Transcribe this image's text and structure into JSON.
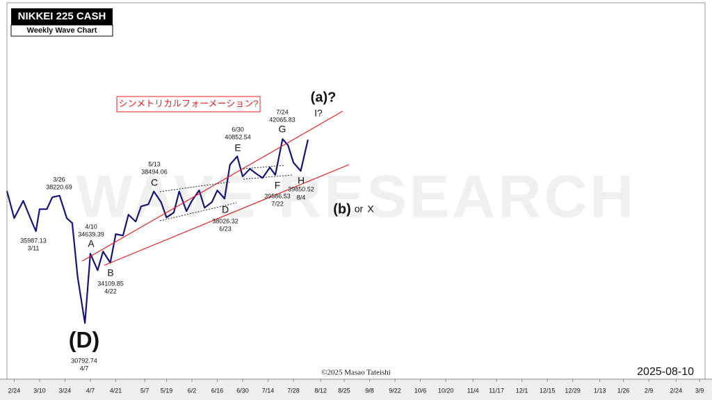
{
  "chart_data": {
    "type": "line",
    "title": "NIKKEI 225 CASH",
    "subtitle": "Weekly Wave Chart",
    "watermark": "WAVE RESEARCH",
    "copyright": "©2025 Masao Tateishi",
    "date": "2025-08-10",
    "note": "シンメトリカルフォーメーション?",
    "log_y": true,
    "color": "#14147a",
    "xlim": [
      -4,
      381
    ],
    "ylim": [
      28000,
      53000
    ],
    "xticks": [
      {
        "value": 0,
        "label": "2/24"
      },
      {
        "value": 14,
        "label": "3/10"
      },
      {
        "value": 28,
        "label": "3/24"
      },
      {
        "value": 42,
        "label": "4/7"
      },
      {
        "value": 56,
        "label": "4/21"
      },
      {
        "value": 72,
        "label": "5/7"
      },
      {
        "value": 84,
        "label": "5/19"
      },
      {
        "value": 98,
        "label": "6/2"
      },
      {
        "value": 112,
        "label": "6/16"
      },
      {
        "value": 126,
        "label": "6/30"
      },
      {
        "value": 140,
        "label": "7/14"
      },
      {
        "value": 154,
        "label": "7/28"
      },
      {
        "value": 169,
        "label": "8/12"
      },
      {
        "value": 182,
        "label": "8/25"
      },
      {
        "value": 196,
        "label": "9/8"
      },
      {
        "value": 210,
        "label": "9/22"
      },
      {
        "value": 224,
        "label": "10/6"
      },
      {
        "value": 238,
        "label": "10/20"
      },
      {
        "value": 253,
        "label": "11/4"
      },
      {
        "value": 266,
        "label": "11/17"
      },
      {
        "value": 280,
        "label": "12/1"
      },
      {
        "value": 294,
        "label": "12/15"
      },
      {
        "value": 308,
        "label": "12/29"
      },
      {
        "value": 323,
        "label": "1/13"
      },
      {
        "value": 336,
        "label": "1/26"
      },
      {
        "value": 350,
        "label": "2/9"
      },
      {
        "value": 365,
        "label": "2/24"
      },
      {
        "value": 378,
        "label": "3/9"
      }
    ],
    "x": [
      -4,
      0,
      5,
      10,
      12,
      14,
      18,
      21,
      25,
      29,
      32,
      35,
      39,
      42,
      46,
      49,
      53,
      56,
      60,
      63,
      67,
      70,
      74,
      77,
      81,
      84,
      88,
      91,
      95,
      98,
      102,
      105,
      109,
      112,
      116,
      119,
      123,
      126,
      130,
      134,
      137,
      141,
      144,
      148,
      151,
      154,
      158,
      162
    ],
    "values": [
      38516,
      36788,
      37888,
      36486,
      35987.13,
      37354,
      37354,
      38113,
      38220.69,
      36788,
      36486,
      33282,
      30792.74,
      34639.39,
      33675,
      34765,
      34109.85,
      35806,
      35720,
      37006,
      36573,
      37531,
      37663,
      38494.06,
      37797,
      36828,
      37136,
      38494,
      37225,
      37888,
      38562,
      37444,
      37797,
      38562,
      38026.32,
      40280,
      40852.54,
      39482,
      39997,
      39621,
      39387,
      40092,
      39586.53,
      42065.83,
      41632,
      40422,
      39850.52,
      42026
    ],
    "annotations": [
      "3/26",
      "38220.69",
      "35987.13",
      "3/11",
      "4/10",
      "34639.39",
      "A",
      "B",
      "34109.85",
      "4/22",
      "5/13",
      "38494.06",
      "C",
      "6/30",
      "40852.54",
      "E",
      "D",
      "38026.32",
      "6/23",
      "7/24",
      "42065.83",
      "G",
      "F",
      "39586.53",
      "7/22",
      "H",
      "39850.52",
      "8/4",
      "(D)",
      "30792.74",
      "4/7",
      "(a)?",
      "I?",
      "(b)",
      "or",
      "X"
    ]
  }
}
